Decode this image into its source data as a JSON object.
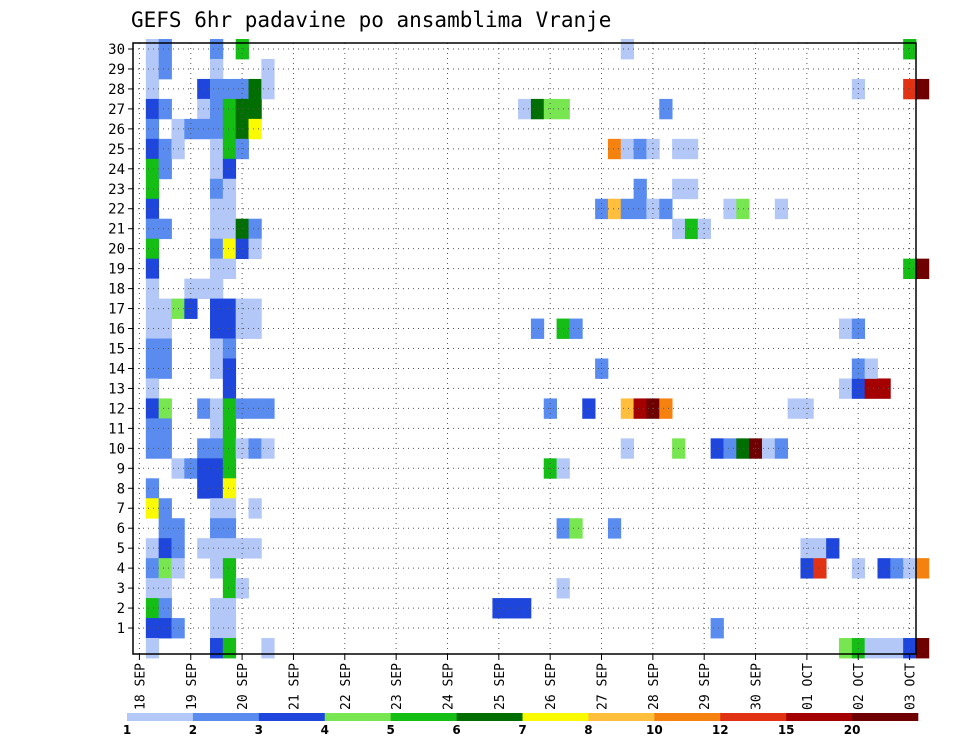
{
  "chart_data": {
    "type": "heatmap",
    "title": "GEFS 6hr padavine po ansamblima Vranje",
    "xlabel": "",
    "ylabel": "",
    "x_ticks": [
      "18 SEP",
      "19 SEP",
      "20 SEP",
      "21 SEP",
      "22 SEP",
      "23 SEP",
      "24 SEP",
      "25 SEP",
      "26 SEP",
      "27 SEP",
      "28 SEP",
      "29 SEP",
      "30 SEP",
      "01 OCT",
      "02 OCT",
      "03 OCT"
    ],
    "y_ticks": [
      "1",
      "2",
      "3",
      "4",
      "5",
      "6",
      "7",
      "8",
      "9",
      "10",
      "11",
      "12",
      "13",
      "14",
      "15",
      "16",
      "17",
      "18",
      "19",
      "20",
      "21",
      "22",
      "23",
      "24",
      "25",
      "26",
      "27",
      "28",
      "29",
      "30"
    ],
    "x_steps_per_tick": 4,
    "y_range": [
      0,
      30
    ],
    "grid": true,
    "colorbar": {
      "labels": [
        "1",
        "2",
        "3",
        "4",
        "5",
        "6",
        "7",
        "8",
        "10",
        "12",
        "15",
        "20"
      ],
      "colors": [
        "#b4c8f8",
        "#5a8cf0",
        "#1e46dc",
        "#78e650",
        "#14be14",
        "#006e00",
        "#fafa00",
        "#ffbe3c",
        "#f5820f",
        "#e13214",
        "#a50000",
        "#6e0000"
      ]
    },
    "cells": [
      [
        1,
        30,
        1
      ],
      [
        1,
        29,
        1
      ],
      [
        1,
        28,
        1
      ],
      [
        1,
        27,
        3
      ],
      [
        1,
        26,
        2
      ],
      [
        1,
        25,
        3
      ],
      [
        1,
        24,
        5
      ],
      [
        1,
        23,
        5
      ],
      [
        1,
        22,
        3
      ],
      [
        1,
        21,
        2
      ],
      [
        1,
        20,
        5
      ],
      [
        1,
        19,
        3
      ],
      [
        1,
        18,
        1
      ],
      [
        1,
        17,
        1
      ],
      [
        1,
        16,
        1
      ],
      [
        1,
        15,
        2
      ],
      [
        1,
        14,
        2
      ],
      [
        1,
        13,
        1
      ],
      [
        1,
        12,
        3
      ],
      [
        1,
        11,
        2
      ],
      [
        1,
        10,
        2
      ],
      [
        1,
        8,
        2
      ],
      [
        1,
        7,
        7
      ],
      [
        1,
        5,
        1
      ],
      [
        1,
        4,
        2
      ],
      [
        1,
        3,
        1
      ],
      [
        1,
        2,
        5
      ],
      [
        1,
        1,
        3
      ],
      [
        1,
        0,
        1
      ],
      [
        2,
        30,
        2
      ],
      [
        2,
        29,
        2
      ],
      [
        2,
        27,
        2
      ],
      [
        2,
        25,
        2
      ],
      [
        2,
        24,
        2
      ],
      [
        2,
        21,
        2
      ],
      [
        2,
        17,
        1
      ],
      [
        2,
        16,
        1
      ],
      [
        2,
        15,
        2
      ],
      [
        2,
        14,
        2
      ],
      [
        2,
        12,
        4
      ],
      [
        2,
        11,
        2
      ],
      [
        2,
        10,
        2
      ],
      [
        2,
        7,
        2
      ],
      [
        2,
        6,
        2
      ],
      [
        2,
        5,
        3
      ],
      [
        2,
        4,
        4
      ],
      [
        2,
        3,
        1
      ],
      [
        2,
        2,
        2
      ],
      [
        2,
        1,
        3
      ],
      [
        3,
        25,
        1
      ],
      [
        3,
        26,
        1
      ],
      [
        3,
        17,
        4
      ],
      [
        3,
        9,
        1
      ],
      [
        3,
        6,
        2
      ],
      [
        3,
        5,
        2
      ],
      [
        3,
        4,
        1
      ],
      [
        3,
        1,
        2
      ],
      [
        4,
        26,
        2
      ],
      [
        4,
        18,
        1
      ],
      [
        4,
        17,
        3
      ],
      [
        4,
        9,
        2
      ],
      [
        5,
        28,
        3
      ],
      [
        5,
        27,
        1
      ],
      [
        5,
        26,
        2
      ],
      [
        5,
        18,
        1
      ],
      [
        5,
        12,
        2
      ],
      [
        5,
        10,
        2
      ],
      [
        5,
        9,
        3
      ],
      [
        5,
        8,
        3
      ],
      [
        5,
        5,
        1
      ],
      [
        6,
        30,
        2
      ],
      [
        6,
        29,
        1
      ],
      [
        6,
        28,
        2
      ],
      [
        6,
        27,
        2
      ],
      [
        6,
        26,
        2
      ],
      [
        6,
        25,
        1
      ],
      [
        6,
        24,
        1
      ],
      [
        6,
        23,
        2
      ],
      [
        6,
        22,
        1
      ],
      [
        6,
        21,
        1
      ],
      [
        6,
        20,
        2
      ],
      [
        6,
        19,
        1
      ],
      [
        6,
        18,
        1
      ],
      [
        6,
        17,
        3
      ],
      [
        6,
        16,
        3
      ],
      [
        6,
        15,
        1
      ],
      [
        6,
        14,
        1
      ],
      [
        6,
        12,
        1
      ],
      [
        6,
        11,
        1
      ],
      [
        6,
        10,
        2
      ],
      [
        6,
        9,
        3
      ],
      [
        6,
        8,
        3
      ],
      [
        6,
        7,
        1
      ],
      [
        6,
        6,
        2
      ],
      [
        6,
        5,
        1
      ],
      [
        6,
        4,
        1
      ],
      [
        6,
        2,
        1
      ],
      [
        6,
        1,
        1
      ],
      [
        6,
        0,
        3
      ],
      [
        7,
        28,
        2
      ],
      [
        7,
        27,
        5
      ],
      [
        7,
        26,
        5
      ],
      [
        7,
        25,
        5
      ],
      [
        7,
        24,
        3
      ],
      [
        7,
        23,
        1
      ],
      [
        7,
        22,
        1
      ],
      [
        7,
        21,
        1
      ],
      [
        7,
        20,
        7
      ],
      [
        7,
        19,
        1
      ],
      [
        7,
        17,
        3
      ],
      [
        7,
        16,
        3
      ],
      [
        7,
        15,
        2
      ],
      [
        7,
        14,
        3
      ],
      [
        7,
        13,
        3
      ],
      [
        7,
        12,
        5
      ],
      [
        7,
        11,
        5
      ],
      [
        7,
        10,
        5
      ],
      [
        7,
        9,
        5
      ],
      [
        7,
        8,
        7
      ],
      [
        7,
        7,
        1
      ],
      [
        7,
        6,
        2
      ],
      [
        7,
        5,
        1
      ],
      [
        7,
        4,
        5
      ],
      [
        7,
        3,
        5
      ],
      [
        7,
        2,
        1
      ],
      [
        7,
        1,
        1
      ],
      [
        7,
        0,
        5
      ],
      [
        8,
        30,
        5
      ],
      [
        8,
        28,
        2
      ],
      [
        8,
        27,
        6
      ],
      [
        8,
        26,
        6
      ],
      [
        8,
        25,
        2
      ],
      [
        8,
        21,
        6
      ],
      [
        8,
        20,
        3
      ],
      [
        8,
        17,
        1
      ],
      [
        8,
        16,
        1
      ],
      [
        8,
        12,
        2
      ],
      [
        8,
        10,
        1
      ],
      [
        8,
        5,
        1
      ],
      [
        8,
        3,
        1
      ],
      [
        9,
        28,
        6
      ],
      [
        9,
        27,
        6
      ],
      [
        9,
        26,
        7
      ],
      [
        9,
        21,
        2
      ],
      [
        9,
        20,
        1
      ],
      [
        9,
        17,
        1
      ],
      [
        9,
        16,
        1
      ],
      [
        9,
        12,
        2
      ],
      [
        9,
        10,
        2
      ],
      [
        9,
        7,
        1
      ],
      [
        9,
        5,
        1
      ],
      [
        10,
        29,
        1
      ],
      [
        10,
        28,
        1
      ],
      [
        10,
        12,
        2
      ],
      [
        10,
        10,
        1
      ],
      [
        10,
        0,
        1
      ],
      [
        28,
        2,
        3
      ],
      [
        29,
        2,
        3
      ],
      [
        30,
        2,
        3
      ],
      [
        30,
        27,
        1
      ],
      [
        31,
        27,
        6
      ],
      [
        32,
        27,
        4
      ],
      [
        33,
        27,
        4
      ],
      [
        31,
        16,
        2
      ],
      [
        32,
        12,
        2
      ],
      [
        32,
        9,
        5
      ],
      [
        33,
        9,
        1
      ],
      [
        33,
        6,
        2
      ],
      [
        33,
        3,
        1
      ],
      [
        33,
        16,
        5
      ],
      [
        34,
        6,
        4
      ],
      [
        34,
        16,
        2
      ],
      [
        35,
        12,
        3
      ],
      [
        36,
        22,
        2
      ],
      [
        36,
        14,
        2
      ],
      [
        37,
        25,
        9
      ],
      [
        37,
        22,
        8
      ],
      [
        37,
        6,
        2
      ],
      [
        38,
        25,
        1
      ],
      [
        38,
        22,
        2
      ],
      [
        38,
        12,
        8
      ],
      [
        38,
        10,
        1
      ],
      [
        38,
        30,
        1
      ],
      [
        39,
        25,
        2
      ],
      [
        39,
        23,
        2
      ],
      [
        39,
        22,
        2
      ],
      [
        39,
        12,
        11
      ],
      [
        40,
        25,
        1
      ],
      [
        40,
        22,
        1
      ],
      [
        40,
        12,
        12
      ],
      [
        41,
        12,
        9
      ],
      [
        41,
        22,
        2
      ],
      [
        41,
        27,
        2
      ],
      [
        42,
        23,
        1
      ],
      [
        42,
        25,
        1
      ],
      [
        42,
        21,
        1
      ],
      [
        42,
        10,
        4
      ],
      [
        43,
        23,
        1
      ],
      [
        43,
        25,
        1
      ],
      [
        43,
        21,
        5
      ],
      [
        44,
        21,
        1
      ],
      [
        45,
        1,
        2
      ],
      [
        45,
        10,
        3
      ],
      [
        46,
        22,
        1
      ],
      [
        46,
        10,
        2
      ],
      [
        47,
        22,
        4
      ],
      [
        47,
        10,
        6
      ],
      [
        48,
        10,
        12
      ],
      [
        49,
        10,
        1
      ],
      [
        50,
        22,
        1
      ],
      [
        50,
        10,
        2
      ],
      [
        51,
        12,
        1
      ],
      [
        52,
        12,
        1
      ],
      [
        52,
        5,
        1
      ],
      [
        52,
        4,
        3
      ],
      [
        53,
        5,
        1
      ],
      [
        53,
        4,
        10
      ],
      [
        54,
        5,
        3
      ],
      [
        55,
        0,
        4
      ],
      [
        55,
        13,
        1
      ],
      [
        55,
        16,
        1
      ],
      [
        56,
        0,
        5
      ],
      [
        56,
        13,
        3
      ],
      [
        56,
        14,
        2
      ],
      [
        56,
        16,
        2
      ],
      [
        56,
        4,
        1
      ],
      [
        56,
        28,
        1
      ],
      [
        57,
        13,
        11
      ],
      [
        57,
        14,
        1
      ],
      [
        57,
        0,
        1
      ],
      [
        58,
        13,
        11
      ],
      [
        58,
        4,
        3
      ],
      [
        58,
        0,
        1
      ],
      [
        59,
        4,
        2
      ],
      [
        59,
        0,
        1
      ],
      [
        60,
        4,
        1
      ],
      [
        60,
        0,
        3
      ],
      [
        60,
        28,
        10
      ],
      [
        60,
        30,
        5
      ],
      [
        60,
        19,
        5
      ],
      [
        61,
        28,
        12
      ],
      [
        61,
        19,
        12
      ],
      [
        61,
        4,
        9
      ],
      [
        61,
        0,
        12
      ]
    ]
  }
}
